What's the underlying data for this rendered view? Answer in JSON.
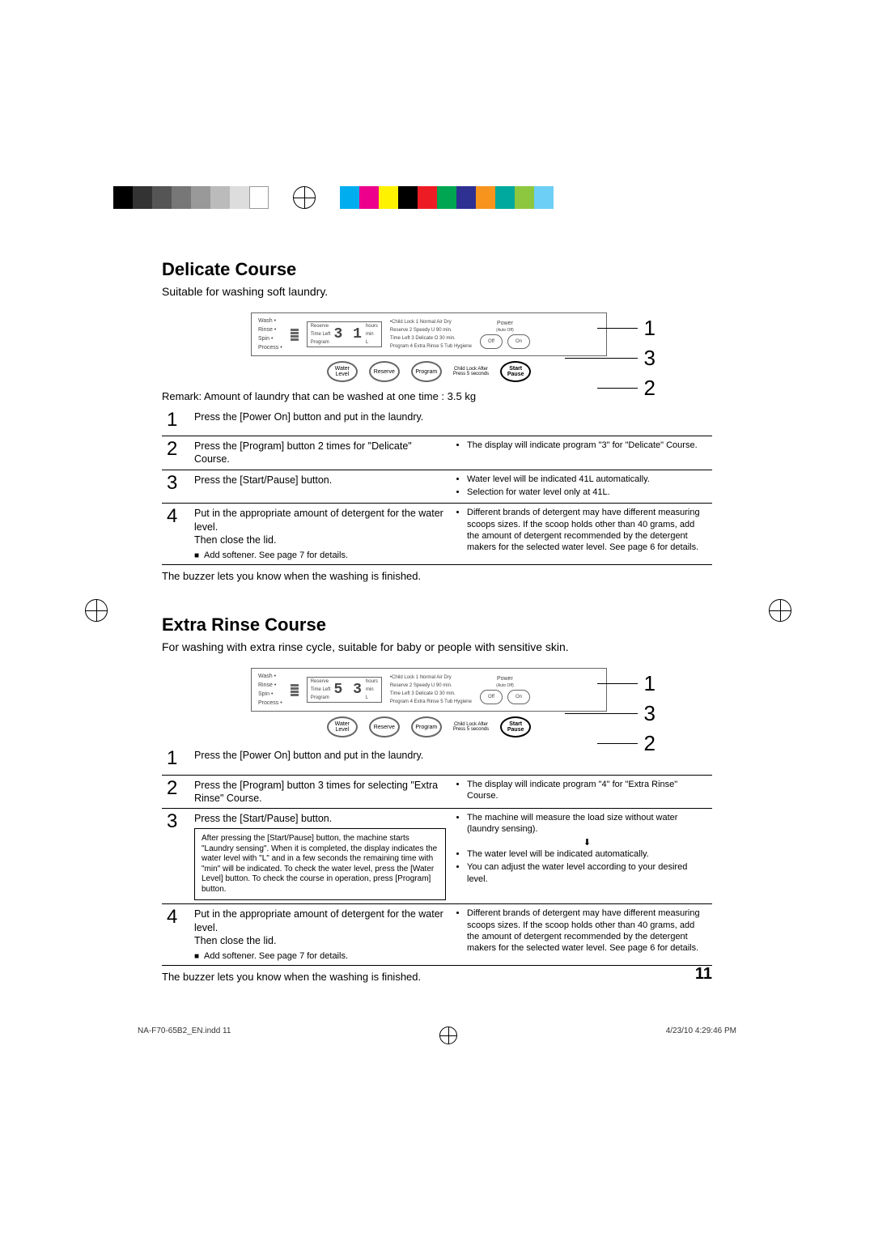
{
  "print_bar": {
    "swatches_left": [
      "#000000",
      "#333333",
      "#555555",
      "#777777",
      "#999999",
      "#bbbbbb",
      "#dddddd",
      "#ffffff"
    ],
    "swatches_right": [
      "#00aeef",
      "#ec008c",
      "#fff200",
      "#000000",
      "#ed1c24",
      "#00a651",
      "#2e3192",
      "#f7941d",
      "#00a99d",
      "#8dc63f",
      "#6dcff6"
    ]
  },
  "sections": [
    {
      "title": "Delicate Course",
      "subtitle": "Suitable for washing soft laundry.",
      "panel": {
        "left_labels": [
          "Wash",
          "Rinse",
          "Spin",
          "Process"
        ],
        "digits": "3 1",
        "digit_side": [
          "hours",
          "min",
          "L"
        ],
        "top_row": "•Child Lock   1 Normal   Air Dry",
        "small_rows": [
          "Reserve  2 Speedy  U 90 min.",
          "Time Left  3 Delicate  O 30 min.",
          "Program  4 Extra Rinse  5 Tub Hygiene"
        ],
        "btn_left": [
          "Water Level",
          "Reserve",
          "Program"
        ],
        "power_label": "Power",
        "power_sub": "(Auto Off)",
        "off": "Off",
        "on": "On",
        "start_pause": "Start\nPause",
        "cl_note": "Child Lock After\nPress 5 seconds"
      },
      "callouts": [
        "1",
        "3",
        "2"
      ],
      "remark": "Remark: Amount of laundry that can be washed at one time : 3.5 kg",
      "rows": [
        {
          "n": "1",
          "left": "Press the [Power On] button and put in the laundry.",
          "right": "",
          "full": true
        },
        {
          "n": "2",
          "left": "Press the [Program] button 2 times for \"Delicate\" Course.",
          "right_bullets": [
            "The display will indicate program \"3\" for \"Delicate\" Course."
          ]
        },
        {
          "n": "3",
          "left": "Press the [Start/Pause] button.",
          "right_bullets": [
            "Water level will be indicated 41L automatically.",
            "Selection for water level only at 41L."
          ]
        },
        {
          "n": "4",
          "left": "Put in the appropriate amount of detergent for the water level.\nThen close the lid.",
          "left_note": "Add softener. See page 7 for details.",
          "right_bullets": [
            "Different brands of detergent may have different measuring scoops sizes. If the scoop holds other than 40 grams, add the amount of detergent recommended by the detergent makers for the selected water level. See page 6 for details."
          ]
        }
      ],
      "closing": "The buzzer lets you know when the washing is finished."
    },
    {
      "title": "Extra Rinse Course",
      "subtitle": "For washing with extra rinse cycle, suitable for baby or people with sensitive skin.",
      "panel": {
        "left_labels": [
          "Wash",
          "Rinse",
          "Spin",
          "Process"
        ],
        "digits": "5 3",
        "digit_side": [
          "hours",
          "min",
          "L"
        ],
        "top_row": "•Child Lock   1 Normal   Air Dry",
        "small_rows": [
          "Reserve  2 Speedy  U 90 min.",
          "Time Left  3 Delicate  O 30 min.",
          "Program  4 Extra Rinse  5 Tub Hygiene"
        ],
        "btn_left": [
          "Water Level",
          "Reserve",
          "Program"
        ],
        "power_label": "Power",
        "power_sub": "(Auto Off)",
        "off": "Off",
        "on": "On",
        "start_pause": "Start\nPause",
        "cl_note": "Child Lock After\nPress 5 seconds"
      },
      "callouts": [
        "1",
        "3",
        "2"
      ],
      "rows": [
        {
          "n": "1",
          "left": "Press the [Power On] button and put in the laundry.",
          "right": "",
          "full": true
        },
        {
          "n": "2",
          "left": "Press the [Program] button 3 times for selecting \"Extra Rinse\" Course.",
          "right_bullets": [
            "The display will indicate program \"4\" for \"Extra Rinse\" Course."
          ]
        },
        {
          "n": "3",
          "left": "Press the [Start/Pause] button.",
          "left_box": "After pressing the [Start/Pause] button, the machine starts \"Laundry sensing\". When it is completed, the display indicates the water level with \"L\" and in a few seconds the remaining time with \"min\" will be indicated. To check the water level, press the [Water Level] button. To check the course in operation, press [Program] button.",
          "right_bullets": [
            "The machine will measure the load size without water (laundry sensing).",
            "The water level will be indicated automatically.",
            "You can adjust the water level according to your desired level."
          ],
          "right_has_arrow": true
        },
        {
          "n": "4",
          "left": "Put in the appropriate amount of detergent for the water level.\nThen close the lid.",
          "left_note": "Add softener. See page 7 for details.",
          "right_bullets": [
            "Different brands of detergent may have different measuring scoops sizes. If the scoop holds other than 40 grams, add the amount of detergent recommended by the detergent makers for the selected water level. See page 6 for details."
          ]
        }
      ],
      "closing": "The buzzer lets you know when the washing is finished."
    }
  ],
  "page_number": "11",
  "footer": {
    "left": "NA-F70-65B2_EN.indd   11",
    "right": "4/23/10   4:29:46 PM"
  }
}
